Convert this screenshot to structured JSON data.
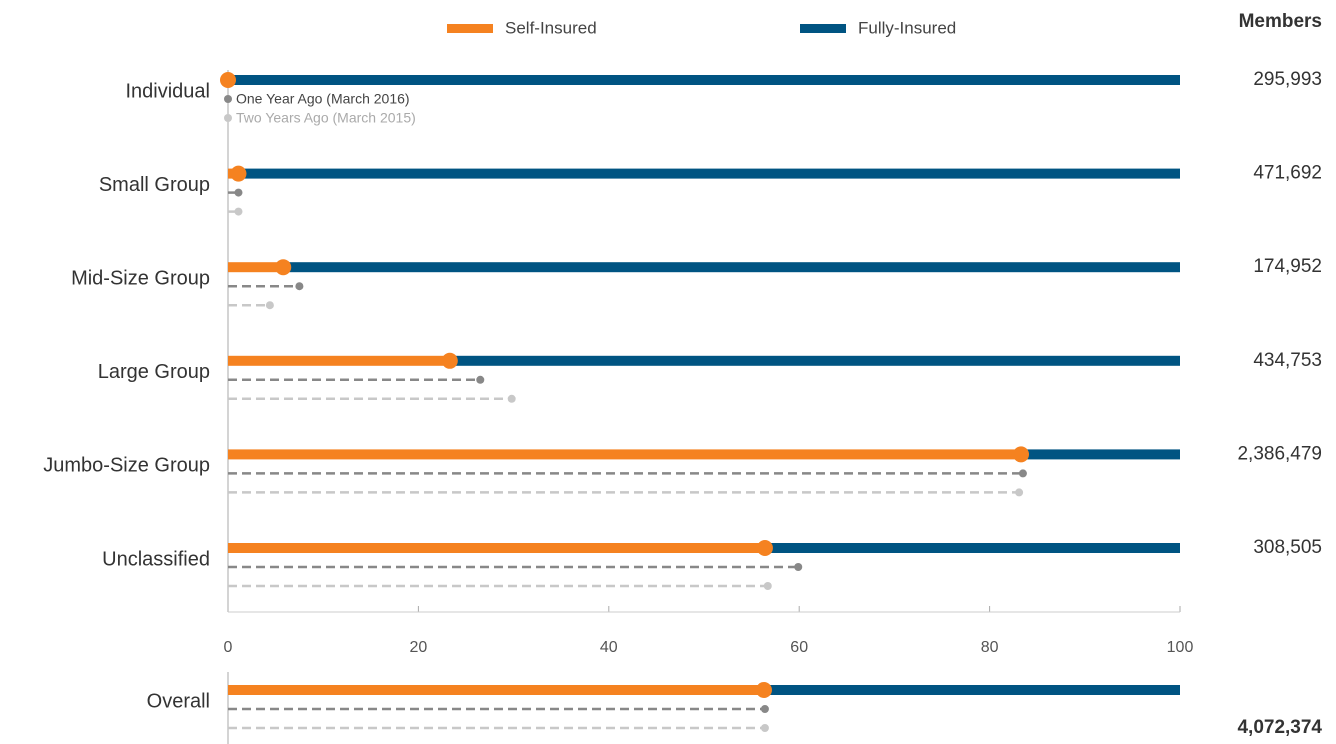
{
  "chart_data": [
    {
      "type": "bar",
      "categories": [
        "Individual",
        "Small Group",
        "Mid-Size Group",
        "Large Group",
        "Jumbo-Size Group",
        "Unclassified"
      ],
      "series": [
        {
          "name": "Self-Insured",
          "color": "#f58220",
          "values": [
            0,
            1.1,
            5.8,
            23.3,
            83.3,
            56.4
          ]
        },
        {
          "name": "Fully-Insured",
          "color": "#005482",
          "values": [
            100,
            98.9,
            94.2,
            76.7,
            16.7,
            43.6
          ]
        },
        {
          "name": "One Year Ago (March 2016)",
          "color": "#888888",
          "values": [
            0,
            1.1,
            7.5,
            26.5,
            83.5,
            59.9
          ]
        },
        {
          "name": "Two Years Ago (March 2015)",
          "color": "#c8c8c8",
          "values": [
            0,
            1.1,
            4.4,
            29.8,
            83.1,
            56.7
          ]
        }
      ],
      "xlim": [
        0,
        100
      ],
      "xticks": [
        0,
        20,
        40,
        60,
        80,
        100
      ],
      "members": {
        "title": "Members",
        "values": [
          295993,
          471692,
          174952,
          434753,
          2386479,
          308505
        ],
        "value_labels": [
          "295,993",
          "471,692",
          "174,952",
          "434,753",
          "2,386,479",
          "308,505"
        ]
      }
    },
    {
      "type": "bar",
      "categories": [
        "Overall"
      ],
      "series": [
        {
          "color": "#f58220",
          "values": [
            56.3
          ]
        },
        {
          "color": "#005482",
          "values": [
            43.7
          ]
        },
        {
          "color": "#888888",
          "values": [
            56.4
          ]
        },
        {
          "color": "#c8c8c8",
          "values": [
            56.4
          ]
        }
      ],
      "xlim": [
        0,
        100
      ],
      "members": {
        "values": [
          4072374
        ],
        "value_labels": [
          "4,072,374"
        ]
      }
    }
  ]
}
